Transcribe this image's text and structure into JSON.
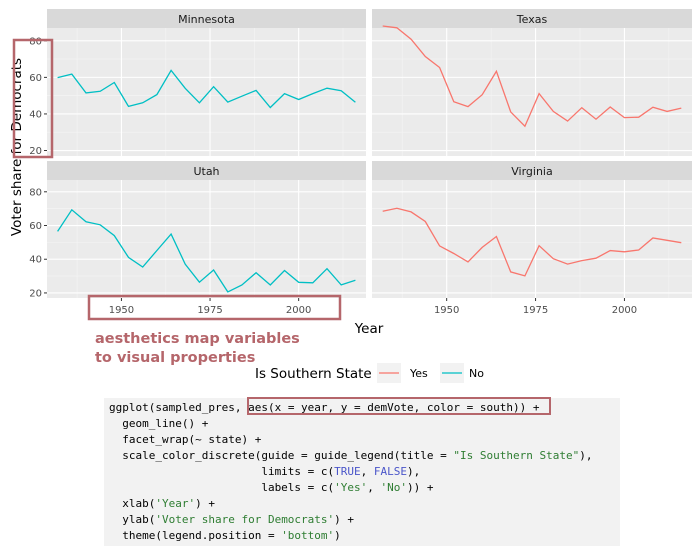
{
  "chart_data": {
    "type": "line",
    "facets": [
      "Minnesota",
      "Texas",
      "Utah",
      "Virginia"
    ],
    "xlabel": "Year",
    "ylabel": "Voter share for Democrats",
    "x_ticks": [
      1950,
      1975,
      2000
    ],
    "y_ticks": [
      20,
      40,
      60,
      80
    ],
    "xlim": [
      1929,
      2019
    ],
    "ylim": [
      17,
      87
    ],
    "legend": {
      "title": "Is Southern State",
      "position": "bottom",
      "entries": [
        {
          "label": "Yes",
          "color": "#F8766D"
        },
        {
          "label": "No",
          "color": "#00BFC4"
        }
      ]
    },
    "series": [
      {
        "facet": "Minnesota",
        "south": "No",
        "x": [
          1932,
          1936,
          1940,
          1944,
          1948,
          1952,
          1956,
          1960,
          1964,
          1968,
          1972,
          1976,
          1980,
          1984,
          1988,
          1992,
          1996,
          2000,
          2004,
          2008,
          2012,
          2016
        ],
        "y": [
          59.9,
          61.8,
          51.5,
          52.4,
          57.2,
          44.1,
          46.1,
          50.6,
          63.8,
          54.0,
          46.1,
          54.9,
          46.5,
          49.7,
          52.9,
          43.5,
          51.1,
          47.9,
          51.1,
          54.1,
          52.7,
          46.4
        ]
      },
      {
        "facet": "Texas",
        "south": "Yes",
        "x": [
          1932,
          1936,
          1940,
          1944,
          1948,
          1952,
          1956,
          1960,
          1964,
          1968,
          1972,
          1976,
          1980,
          1984,
          1988,
          1992,
          1996,
          2000,
          2004,
          2008,
          2012,
          2016
        ],
        "y": [
          88.1,
          87.1,
          80.9,
          71.4,
          65.4,
          46.7,
          44.0,
          50.5,
          63.3,
          41.1,
          33.3,
          51.1,
          41.4,
          36.1,
          43.4,
          37.1,
          43.8,
          38.0,
          38.2,
          43.7,
          41.4,
          43.2
        ]
      },
      {
        "facet": "Utah",
        "south": "No",
        "x": [
          1932,
          1936,
          1940,
          1944,
          1948,
          1952,
          1956,
          1960,
          1964,
          1968,
          1972,
          1976,
          1980,
          1984,
          1988,
          1992,
          1996,
          2000,
          2004,
          2008,
          2012,
          2016
        ],
        "y": [
          56.5,
          69.3,
          62.2,
          60.4,
          54.0,
          41.1,
          35.4,
          45.2,
          54.9,
          37.1,
          26.4,
          33.6,
          20.6,
          24.7,
          32.0,
          24.7,
          33.3,
          26.3,
          26.0,
          34.4,
          24.8,
          27.5
        ]
      },
      {
        "facet": "Virginia",
        "south": "Yes",
        "x": [
          1932,
          1936,
          1940,
          1944,
          1948,
          1952,
          1956,
          1960,
          1964,
          1968,
          1972,
          1976,
          1980,
          1984,
          1988,
          1992,
          1996,
          2000,
          2004,
          2008,
          2012,
          2016
        ],
        "y": [
          68.5,
          70.2,
          68.1,
          62.4,
          47.9,
          43.4,
          38.4,
          47.0,
          53.5,
          32.5,
          30.1,
          48.0,
          40.3,
          37.1,
          39.2,
          40.6,
          45.1,
          44.4,
          45.5,
          52.6,
          51.2,
          49.8
        ]
      }
    ]
  },
  "annotation": {
    "line1": "aesthetics map variables",
    "line2": "to visual properties"
  },
  "code": {
    "l1a": "ggplot(sampled_pres, ",
    "l1b": "aes(x = year, y = demVote, color = south))",
    "l1c": " +",
    "l2": "  geom_line() +",
    "l3": "  facet_wrap(~ state) +",
    "l4a": "  scale_color_discrete(guide = guide_legend(title = ",
    "l4b": "\"Is Southern State\"",
    "l4c": "),",
    "l5a": "                       limits = c(",
    "l5b": "TRUE",
    "l5c": ", ",
    "l5d": "FALSE",
    "l5e": "),",
    "l6a": "                       labels = c(",
    "l6b": "'Yes'",
    "l6c": ", ",
    "l6d": "'No'",
    "l6e": ")) +",
    "l7a": "  xlab(",
    "l7b": "'Year'",
    "l7c": ") +",
    "l8a": "  ylab(",
    "l8b": "'Voter share for Democrats'",
    "l8c": ") +",
    "l9a": "  theme(legend.position = ",
    "l9b": "'bottom'",
    "l9c": ")"
  }
}
